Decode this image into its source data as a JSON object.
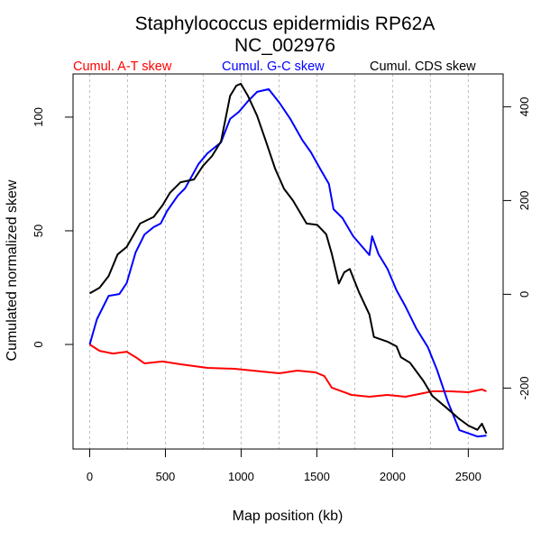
{
  "chart_data": {
    "type": "line",
    "title": "Staphylococcus epidermidis RP62A",
    "subtitle": "NC_002976",
    "xlabel": "Map position (kb)",
    "ylabel": "Cumulated normalized skew",
    "ylabel_right": "",
    "xlim": [
      -110,
      2730
    ],
    "ylim": [
      -46,
      119
    ],
    "ylim_right": [
      -330,
      470
    ],
    "xticks": [
      0,
      500,
      1000,
      1500,
      2000,
      2500
    ],
    "xtick_labels": [
      "0",
      "500",
      "1000",
      "1500",
      "2000",
      "2500"
    ],
    "yticks": [
      0,
      50,
      100
    ],
    "ytick_labels": [
      "0",
      "50",
      "100"
    ],
    "yticks_right": [
      -200,
      0,
      200,
      400
    ],
    "ytick_labels_right": [
      "-200",
      "0",
      "200",
      "400"
    ],
    "vertical_gridlines": [
      0,
      250,
      500,
      750,
      1000,
      1250,
      1500,
      1750,
      2000,
      2250,
      2500
    ],
    "grid": "vertical dotted",
    "legend_placement": "top, above plot",
    "series": [
      {
        "name": "Cumul. A-T skew",
        "color": "#ff0000",
        "axis": "left",
        "x": [
          0,
          65,
          154,
          244,
          303,
          362,
          481,
          600,
          778,
          956,
          1135,
          1253,
          1372,
          1491,
          1550,
          1598,
          1729,
          1847,
          1966,
          2085,
          2263,
          2382,
          2501,
          2590,
          2620
        ],
        "y": [
          0,
          -2.8,
          -4.0,
          -3.2,
          -5.6,
          -8.3,
          -7.5,
          -8.7,
          -10.3,
          -10.7,
          -11.9,
          -12.7,
          -11.5,
          -12.3,
          -13.9,
          -19.0,
          -22.2,
          -23.0,
          -22.2,
          -23.0,
          -20.6,
          -20.6,
          -21.0,
          -19.8,
          -20.6
        ]
      },
      {
        "name": "Cumul. G-C skew",
        "color": "#0000ff",
        "axis": "left",
        "x": [
          0,
          48,
          125,
          196,
          244,
          303,
          362,
          422,
          469,
          511,
          582,
          630,
          719,
          778,
          867,
          927,
          986,
          1046,
          1105,
          1182,
          1253,
          1325,
          1402,
          1461,
          1521,
          1580,
          1610,
          1669,
          1740,
          1806,
          1847,
          1865,
          1907,
          1966,
          2026,
          2085,
          2156,
          2233,
          2293,
          2364,
          2441,
          2560,
          2620
        ],
        "y": [
          0,
          11.1,
          21.4,
          22.2,
          27.0,
          40.5,
          48.4,
          51.6,
          53.2,
          58.7,
          65.5,
          68.7,
          79.4,
          84.1,
          88.9,
          99.2,
          102.4,
          107.1,
          111.1,
          112.3,
          106.3,
          99.2,
          90.1,
          84.5,
          77.4,
          70.6,
          59.5,
          55.6,
          47.6,
          42.5,
          39.3,
          47.6,
          39.7,
          33.3,
          23.8,
          16.7,
          7.1,
          -1.2,
          -11.1,
          -25.0,
          -37.7,
          -40.5,
          -40.1
        ]
      },
      {
        "name": "Cumul. CDS skew",
        "color": "#000000",
        "axis": "right",
        "x": [
          0,
          65,
          125,
          184,
          244,
          333,
          422,
          481,
          529,
          600,
          689,
          748,
          808,
          867,
          927,
          968,
          998,
          1045,
          1105,
          1164,
          1224,
          1283,
          1342,
          1432,
          1503,
          1562,
          1598,
          1645,
          1681,
          1717,
          1776,
          1847,
          1877,
          1966,
          2026,
          2055,
          2115,
          2204,
          2263,
          2352,
          2441,
          2501,
          2560,
          2590,
          2620
        ],
        "y": [
          2,
          14,
          39,
          85,
          101,
          151,
          165,
          190,
          216,
          239,
          245,
          274,
          295,
          326,
          423,
          445,
          449,
          423,
          381,
          326,
          268,
          225,
          200,
          151,
          148,
          128,
          87,
          23,
          47,
          54,
          6,
          -43,
          -91,
          -101,
          -111,
          -134,
          -146,
          -185,
          -217,
          -241,
          -266,
          -280,
          -289,
          -276,
          -297
        ]
      }
    ]
  }
}
